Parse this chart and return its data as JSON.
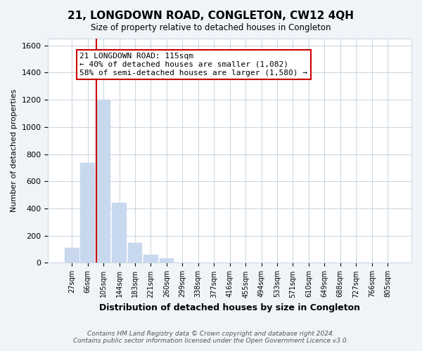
{
  "title": "21, LONGDOWN ROAD, CONGLETON, CW12 4QH",
  "subtitle": "Size of property relative to detached houses in Congleton",
  "xlabel": "Distribution of detached houses by size in Congleton",
  "ylabel": "Number of detached properties",
  "bar_labels": [
    "27sqm",
    "66sqm",
    "105sqm",
    "144sqm",
    "183sqm",
    "221sqm",
    "260sqm",
    "299sqm",
    "338sqm",
    "377sqm",
    "416sqm",
    "455sqm",
    "494sqm",
    "533sqm",
    "571sqm",
    "610sqm",
    "649sqm",
    "688sqm",
    "727sqm",
    "766sqm",
    "805sqm"
  ],
  "bar_heights": [
    110,
    735,
    1200,
    440,
    145,
    60,
    35,
    0,
    0,
    0,
    0,
    0,
    0,
    0,
    0,
    0,
    0,
    0,
    0,
    0,
    0
  ],
  "bar_color": "#c8d8ee",
  "bar_edge_color": "#c8d8ee",
  "ylim": [
    0,
    1650
  ],
  "yticks": [
    0,
    200,
    400,
    600,
    800,
    1000,
    1200,
    1400,
    1600
  ],
  "vline_x_index": 2,
  "vline_color": "#cc0000",
  "annotation_title": "21 LONGDOWN ROAD: 115sqm",
  "annotation_line1": "← 40% of detached houses are smaller (1,082)",
  "annotation_line2": "58% of semi-detached houses are larger (1,580) →",
  "annotation_box_color": "#ffffff",
  "annotation_box_edge": "#cc0000",
  "footer1": "Contains HM Land Registry data © Crown copyright and database right 2024.",
  "footer2": "Contains public sector information licensed under the Open Government Licence v3.0.",
  "bg_color": "#f0f4f8",
  "plot_bg_color": "#ffffff",
  "grid_color": "#c8d4e0"
}
